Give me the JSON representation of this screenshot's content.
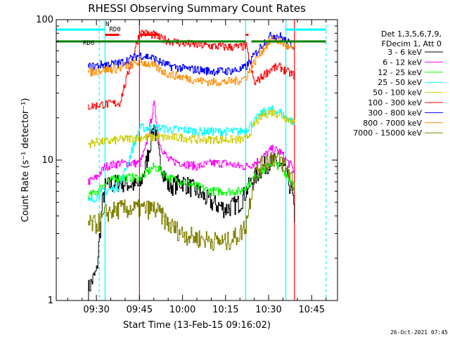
{
  "chart_data": {
    "type": "line",
    "title": "RHESSI Observing Summary Count Rates",
    "xlabel": "Start Time (13-Feb-15 09:16:02)",
    "ylabel": "Count Rate (s⁻¹ detector⁻¹)",
    "y_scale": "log",
    "ylim": [
      1,
      100
    ],
    "xlim": [
      "09:16",
      "10:54"
    ],
    "x_ticks": [
      "09:30",
      "09:45",
      "10:00",
      "10:15",
      "10:30",
      "10:45"
    ],
    "y_ticks": [
      "1",
      "10",
      "100"
    ],
    "legend_position": "right",
    "legend_header": [
      "Det 1,3,5,6,7,9,",
      "FDecim 1, Att 0"
    ],
    "timestamp": "26-Oct-2021 07:45",
    "flags": [
      {
        "label": "N",
        "color": "#00ffff",
        "level": 85,
        "segments": [
          [
            "09:16",
            "09:33"
          ],
          [
            "10:36",
            "10:50"
          ]
        ]
      },
      {
        "label": "RD0",
        "color": "#ff0000",
        "level": 78,
        "segments": [
          [
            "09:33",
            "09:38"
          ],
          [
            "09:45",
            "09:52"
          ],
          [
            "10:22",
            "10:23"
          ]
        ]
      },
      {
        "label": "RD6",
        "color": "#008000",
        "level": 70,
        "segments": [
          [
            "09:16",
            "10:22"
          ],
          [
            "10:24",
            "10:50"
          ]
        ]
      }
    ],
    "markers": [
      {
        "time": "09:31",
        "color": "#00ffff",
        "style": "dash"
      },
      {
        "time": "10:50",
        "color": "#00ffff",
        "style": "dash"
      },
      {
        "time": "09:33",
        "color": "#00ffff",
        "style": "solid"
      },
      {
        "time": "09:45",
        "color": "#ff0000",
        "style": "solid"
      },
      {
        "time": "10:22",
        "color": "#00ffff",
        "style": "solid"
      },
      {
        "time": "10:36",
        "color": "#00ffff",
        "style": "solid"
      },
      {
        "time": "10:39",
        "color": "#ff0000",
        "style": "solid"
      }
    ],
    "x": [
      "09:27",
      "09:30",
      "09:32",
      "09:33",
      "09:38",
      "09:45",
      "09:47",
      "09:50",
      "09:52",
      "09:55",
      "10:00",
      "10:05",
      "10:10",
      "10:15",
      "10:20",
      "10:22",
      "10:25",
      "10:28",
      "10:31",
      "10:34",
      "10:36",
      "10:38",
      "10:39"
    ],
    "series": [
      {
        "name": "3 - 6 keV",
        "color": "#000000",
        "values": [
          1.2,
          1.6,
          5,
          6.5,
          7,
          6.5,
          9,
          18,
          10,
          6.5,
          7,
          6,
          5,
          4.5,
          5,
          6,
          7.5,
          9,
          10,
          9,
          8,
          6,
          4
        ]
      },
      {
        "name": "6 - 12 keV",
        "color": "#ff00ff",
        "values": [
          7,
          7.5,
          8.5,
          9,
          9.5,
          9.5,
          12,
          25,
          13,
          10,
          9.5,
          9,
          9.5,
          9.5,
          9,
          9,
          9.5,
          10.5,
          12,
          11.5,
          10,
          9,
          8
        ]
      },
      {
        "name": "12 - 25 keV",
        "color": "#00ff00",
        "values": [
          5.5,
          6,
          6.5,
          7,
          7.5,
          7.5,
          8,
          9,
          8.5,
          7.5,
          7,
          6.5,
          6,
          6,
          6,
          6.5,
          7.5,
          8.5,
          9.5,
          9,
          8,
          7,
          6.5
        ]
      },
      {
        "name": "25 - 50 keV",
        "color": "#00ffff",
        "values": [
          5,
          5.5,
          6,
          6,
          6.5,
          17,
          17,
          17,
          17,
          16.5,
          16.5,
          16,
          16,
          16,
          16,
          16.5,
          19,
          22,
          23,
          22,
          20,
          19,
          18
        ]
      },
      {
        "name": "50 - 100 keV",
        "color": "#cccc00",
        "values": [
          13,
          13.5,
          13.5,
          13.5,
          14,
          14.5,
          14.5,
          14.5,
          14.5,
          14.5,
          14.5,
          14,
          14,
          14,
          14,
          14,
          18,
          21,
          22,
          21,
          20,
          19,
          18
        ]
      },
      {
        "name": "100 - 300 keV",
        "color": "#ff0000",
        "values": [
          24,
          24.5,
          25,
          25,
          25.5,
          81,
          80,
          78,
          74,
          71,
          68,
          66,
          65,
          64,
          64,
          65,
          35,
          40,
          45,
          46,
          43,
          41,
          40
        ]
      },
      {
        "name": "300 - 800 keV",
        "color": "#0000ff",
        "values": [
          46,
          47,
          48,
          48,
          49,
          56,
          55,
          53,
          50,
          47,
          45,
          44,
          43,
          43,
          44,
          46,
          56,
          68,
          78,
          76,
          70,
          66,
          64
        ]
      },
      {
        "name": "800 - 7000 keV",
        "color": "#ff8c00",
        "values": [
          42,
          43,
          44,
          44,
          45,
          50,
          49,
          47,
          44,
          41,
          39,
          37,
          36,
          36,
          37,
          39,
          50,
          62,
          72,
          70,
          65,
          61,
          60
        ]
      },
      {
        "name": "7000 - 15000 keV",
        "color": "#808000",
        "values": [
          3.5,
          3.5,
          3.8,
          4.2,
          4.5,
          4.5,
          4.5,
          4.5,
          4.2,
          3.5,
          3,
          2.8,
          2.7,
          2.6,
          3,
          3.5,
          8,
          9.5,
          10.5,
          10,
          9,
          7.5,
          6
        ]
      }
    ]
  }
}
